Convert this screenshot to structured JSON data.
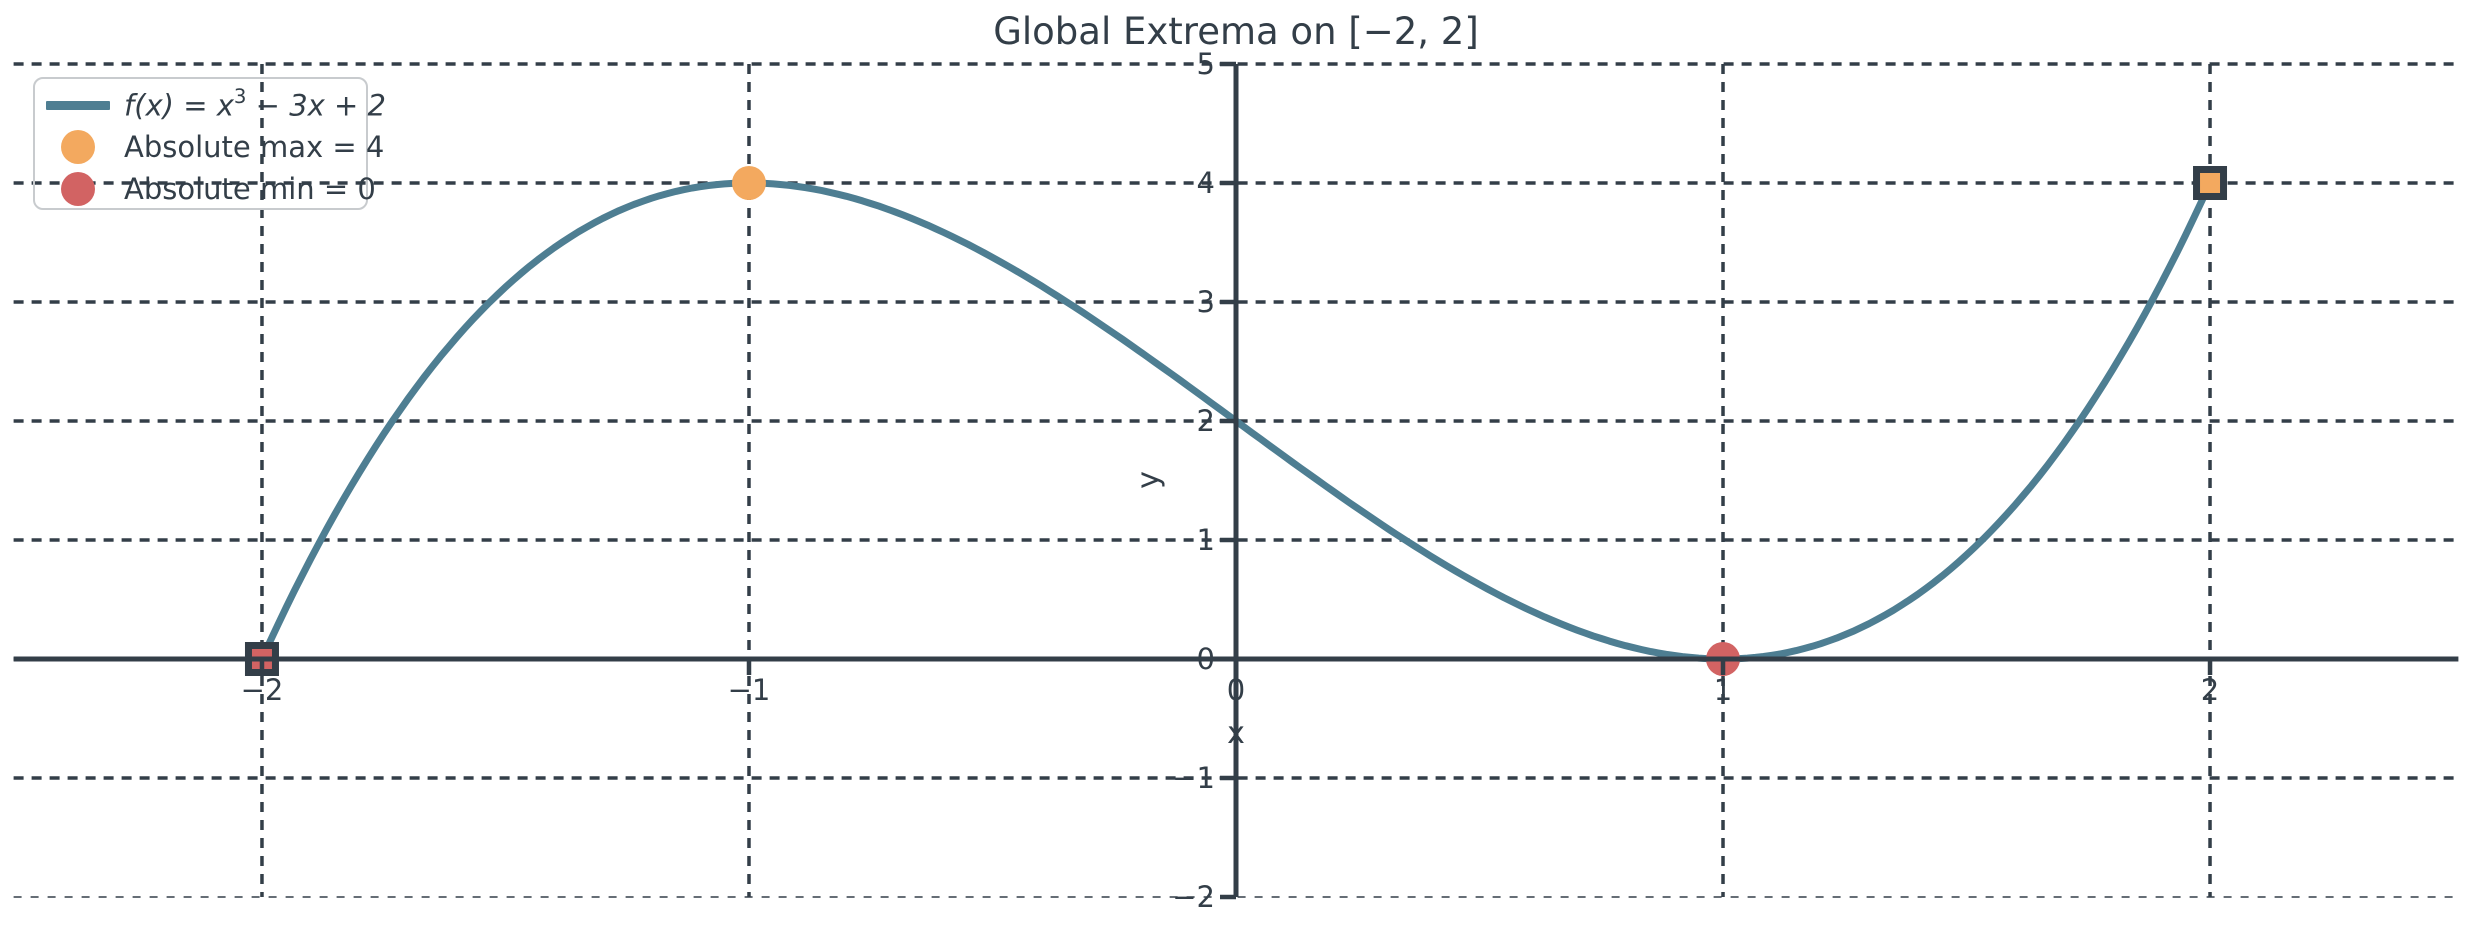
{
  "page": {
    "background": "#ffffff"
  },
  "colors": {
    "text": "#333e48",
    "axis": "#333e48",
    "grid": "#333e48",
    "curve": "#4e7e92",
    "max_marker": "#f3a95f",
    "min_marker": "#d26363",
    "marker_edge": "#333e48",
    "legend_border": "#c8cbce"
  },
  "chart_data": {
    "type": "line",
    "title": "Global Extrema on [−2, 2]",
    "xlabel": "x",
    "ylabel": "y",
    "xlim": [
      -2.51,
      2.51
    ],
    "ylim": [
      -2,
      5
    ],
    "x_ticks": [
      -2,
      -1,
      0,
      1,
      2
    ],
    "x_tick_labels": [
      "−2",
      "−1",
      "0",
      "1",
      "2"
    ],
    "y_ticks": [
      5,
      4,
      3,
      2,
      1,
      0,
      -1,
      -2
    ],
    "y_tick_labels": [
      "5",
      "4",
      "3",
      "2",
      "1",
      "0",
      "−1",
      "−2"
    ],
    "grid": true,
    "grid_style": "dashed",
    "spines": "centered-at-origin",
    "legend_position": "upper left",
    "series": [
      {
        "name": "f(x) = x³ − 3x + 2",
        "kind": "polynomial-function",
        "polynomial_coefficients": [
          1,
          0,
          -3,
          2
        ],
        "domain": [
          -2,
          2
        ],
        "color": "#4e7e92",
        "linewidth": 7,
        "key_values": [
          {
            "x": -2,
            "y": 0
          },
          {
            "x": -1,
            "y": 4
          },
          {
            "x": 0,
            "y": 2
          },
          {
            "x": 1,
            "y": 0
          },
          {
            "x": 2,
            "y": 4
          }
        ]
      }
    ],
    "points": [
      {
        "name": "absolute-max-interior",
        "x": -1,
        "y": 4,
        "marker": "circle",
        "fill": "#f3a95f"
      },
      {
        "name": "absolute-min-interior",
        "x": 1,
        "y": 0,
        "marker": "circle",
        "fill": "#d26363"
      },
      {
        "name": "absolute-min-endpoint",
        "x": -2,
        "y": 0,
        "marker": "square",
        "fill": "#d26363"
      },
      {
        "name": "absolute-max-endpoint",
        "x": 2,
        "y": 4,
        "marker": "square",
        "fill": "#f3a95f"
      }
    ]
  },
  "legend": {
    "items": [
      {
        "type": "line",
        "color": "#4e7e92",
        "label": "f(x) = x³ − 3x + 2",
        "label_prefix": "f(x) = x",
        "label_sup": "3",
        "label_suffix": " − 3x + 2"
      },
      {
        "type": "marker",
        "color": "#f3a95f",
        "label": "Absolute max = 4"
      },
      {
        "type": "marker",
        "color": "#d26363",
        "label": "Absolute min = 0"
      }
    ]
  }
}
